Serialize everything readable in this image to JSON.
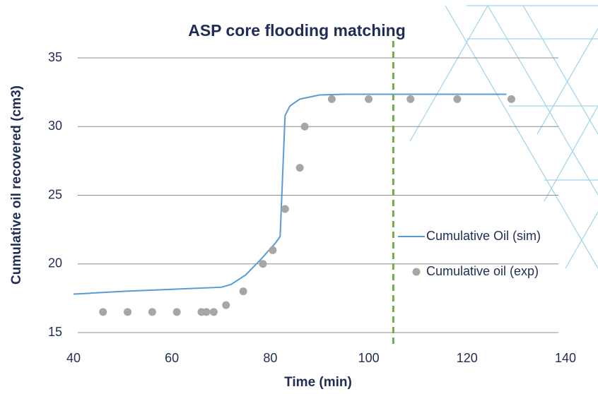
{
  "chart_data": {
    "type": "line",
    "title": "ASP core flooding matching",
    "x_label": "Time (min)",
    "y_label": "Cumulative oil recovered (cm3)",
    "xlim": [
      40,
      140
    ],
    "xticks": [
      40,
      60,
      80,
      100,
      120,
      140
    ],
    "ylim": [
      15,
      35
    ],
    "yticks": [
      15,
      20,
      25,
      30,
      35
    ],
    "grid": true,
    "legend": "right",
    "vline": {
      "x": 105,
      "color": "#70ad47"
    },
    "series": [
      {
        "name": "Cumulative Oil (sim)",
        "type": "line",
        "color": "#5b9bd5",
        "x": [
          40,
          50,
          60,
          70,
          72,
          75,
          78,
          81,
          82,
          83,
          84,
          86,
          90,
          95,
          128
        ],
        "values": [
          17.8,
          18,
          18.15,
          18.3,
          18.5,
          19.2,
          20.3,
          21.5,
          22,
          30.8,
          31.5,
          32,
          32.3,
          32.35,
          32.35
        ]
      },
      {
        "name": "Cumulative oil (exp)",
        "type": "scatter",
        "color": "#a6a6a6",
        "x": [
          46,
          51,
          56,
          61,
          66,
          67,
          68.5,
          71,
          74.5,
          78.5,
          80.5,
          83,
          86,
          87,
          92.5,
          100,
          108.5,
          118,
          129
        ],
        "values": [
          16.5,
          16.5,
          16.5,
          16.5,
          16.5,
          16.5,
          16.5,
          17,
          18,
          20,
          21,
          24,
          27,
          30,
          32,
          32,
          32,
          32,
          32
        ]
      }
    ]
  }
}
